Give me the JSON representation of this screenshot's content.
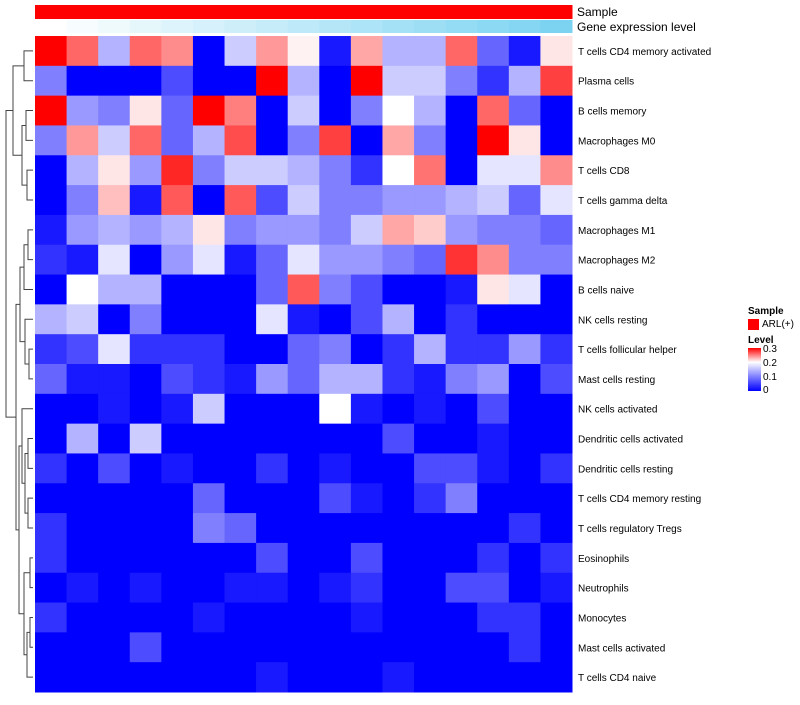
{
  "chart_data": {
    "type": "heatmap",
    "annotation_tracks": {
      "sample": {
        "label": "Sample",
        "values": [
          "ARL(+)",
          "ARL(+)",
          "ARL(+)",
          "ARL(+)",
          "ARL(+)",
          "ARL(+)",
          "ARL(+)",
          "ARL(+)",
          "ARL(+)",
          "ARL(+)",
          "ARL(+)",
          "ARL(+)",
          "ARL(+)",
          "ARL(+)",
          "ARL(+)",
          "ARL(+)",
          "ARL(+)"
        ],
        "color": "#ff0000"
      },
      "expression": {
        "label": "Gene expression level",
        "values": [
          0.0,
          0.05,
          0.1,
          0.15,
          0.2,
          0.25,
          0.3,
          0.35,
          0.4,
          0.45,
          0.5,
          0.55,
          0.6,
          0.65,
          0.7,
          0.75,
          0.8
        ],
        "color_low": "#ffffff",
        "color_high": "#5bc8ee"
      }
    },
    "rows": [
      "T cells CD4 memory activated",
      "Plasma cells",
      "B cells memory",
      "Macrophages M0",
      "T cells CD8",
      "T cells gamma delta",
      "Macrophages M1",
      "Macrophages M2",
      "B cells naive",
      "NK cells resting",
      "T cells follicular helper",
      "Mast cells resting",
      "NK cells activated",
      "Dendritic cells activated",
      "Dendritic cells resting",
      "T cells CD4 memory resting",
      "T cells regulatory  Tregs",
      "Eosinophils",
      "Neutrophils",
      "Monocytes",
      "Mast cells activated",
      "T cells CD4 naive"
    ],
    "values": [
      [
        0.3,
        0.22,
        0.07,
        0.22,
        0.19,
        0.0,
        0.08,
        0.18,
        0.11,
        0.01,
        0.17,
        0.07,
        0.07,
        0.22,
        0.04,
        0.01,
        0.12
      ],
      [
        0.05,
        0.0,
        0.0,
        0.0,
        0.03,
        0.0,
        0.0,
        0.3,
        0.07,
        0.0,
        0.3,
        0.08,
        0.08,
        0.05,
        0.02,
        0.07,
        0.25
      ],
      [
        0.3,
        0.06,
        0.05,
        0.12,
        0.04,
        0.3,
        0.2,
        0.0,
        0.08,
        0.0,
        0.05,
        0.1,
        0.07,
        0.0,
        0.22,
        0.04,
        0.0
      ],
      [
        0.05,
        0.18,
        0.08,
        0.22,
        0.04,
        0.07,
        0.24,
        0.0,
        0.05,
        0.25,
        0.0,
        0.17,
        0.05,
        0.0,
        0.3,
        0.12,
        0.0
      ],
      [
        0.0,
        0.07,
        0.12,
        0.06,
        0.27,
        0.05,
        0.08,
        0.08,
        0.07,
        0.05,
        0.02,
        0.1,
        0.21,
        0.0,
        0.09,
        0.09,
        0.19
      ],
      [
        0.0,
        0.05,
        0.15,
        0.01,
        0.23,
        0.0,
        0.23,
        0.03,
        0.08,
        0.05,
        0.05,
        0.06,
        0.06,
        0.07,
        0.08,
        0.04,
        0.09
      ],
      [
        0.01,
        0.06,
        0.07,
        0.06,
        0.07,
        0.12,
        0.05,
        0.06,
        0.06,
        0.05,
        0.08,
        0.17,
        0.14,
        0.06,
        0.05,
        0.05,
        0.04
      ],
      [
        0.02,
        0.01,
        0.09,
        0.0,
        0.06,
        0.09,
        0.01,
        0.04,
        0.09,
        0.06,
        0.06,
        0.05,
        0.04,
        0.26,
        0.19,
        0.05,
        0.05
      ],
      [
        0.0,
        0.1,
        0.07,
        0.07,
        0.0,
        0.0,
        0.0,
        0.04,
        0.23,
        0.05,
        0.03,
        0.0,
        0.0,
        0.01,
        0.12,
        0.09,
        0.0
      ],
      [
        0.07,
        0.08,
        0.0,
        0.05,
        0.0,
        0.0,
        0.0,
        0.09,
        0.01,
        0.0,
        0.03,
        0.07,
        0.0,
        0.02,
        0.0,
        0.0,
        0.0
      ],
      [
        0.02,
        0.03,
        0.09,
        0.02,
        0.02,
        0.02,
        0.0,
        0.0,
        0.04,
        0.05,
        0.0,
        0.02,
        0.07,
        0.02,
        0.02,
        0.06,
        0.02
      ],
      [
        0.04,
        0.01,
        0.01,
        0.0,
        0.03,
        0.02,
        0.01,
        0.06,
        0.04,
        0.07,
        0.07,
        0.02,
        0.01,
        0.05,
        0.06,
        0.0,
        0.03
      ],
      [
        0.0,
        0.0,
        0.01,
        0.0,
        0.01,
        0.08,
        0.0,
        0.0,
        0.0,
        0.1,
        0.01,
        0.0,
        0.01,
        0.0,
        0.03,
        0.0,
        0.0
      ],
      [
        0.0,
        0.07,
        0.0,
        0.08,
        0.0,
        0.0,
        0.0,
        0.0,
        0.0,
        0.0,
        0.0,
        0.03,
        0.0,
        0.0,
        0.01,
        0.0,
        0.0
      ],
      [
        0.02,
        0.0,
        0.03,
        0.0,
        0.01,
        0.0,
        0.0,
        0.02,
        0.0,
        0.01,
        0.0,
        0.0,
        0.03,
        0.03,
        0.01,
        0.0,
        0.02
      ],
      [
        0.0,
        0.0,
        0.0,
        0.0,
        0.0,
        0.04,
        0.0,
        0.0,
        0.0,
        0.03,
        0.01,
        0.0,
        0.02,
        0.05,
        0.0,
        0.0,
        0.0
      ],
      [
        0.02,
        0.0,
        0.0,
        0.0,
        0.0,
        0.05,
        0.04,
        0.0,
        0.0,
        0.0,
        0.0,
        0.0,
        0.0,
        0.0,
        0.0,
        0.02,
        0.0
      ],
      [
        0.02,
        0.0,
        0.0,
        0.0,
        0.0,
        0.0,
        0.0,
        0.03,
        0.0,
        0.0,
        0.03,
        0.0,
        0.0,
        0.0,
        0.02,
        0.0,
        0.02
      ],
      [
        0.0,
        0.01,
        0.0,
        0.01,
        0.0,
        0.0,
        0.01,
        0.01,
        0.0,
        0.01,
        0.02,
        0.0,
        0.0,
        0.03,
        0.03,
        0.0,
        0.01
      ],
      [
        0.02,
        0.0,
        0.0,
        0.0,
        0.0,
        0.01,
        0.0,
        0.0,
        0.0,
        0.0,
        0.01,
        0.0,
        0.0,
        0.0,
        0.02,
        0.02,
        0.0
      ],
      [
        0.0,
        0.0,
        0.0,
        0.03,
        0.0,
        0.0,
        0.0,
        0.0,
        0.0,
        0.0,
        0.0,
        0.0,
        0.0,
        0.0,
        0.0,
        0.02,
        0.0
      ],
      [
        0.0,
        0.0,
        0.0,
        0.0,
        0.0,
        0.0,
        0.0,
        0.01,
        0.0,
        0.0,
        0.0,
        0.01,
        0.0,
        0.0,
        0.0,
        0.0,
        0.0
      ]
    ],
    "color_scale": {
      "low": "#0000ff",
      "mid": "#ffffff",
      "high": "#ff0000",
      "min": 0,
      "mid_value": 0.1,
      "max": 0.3
    },
    "legend": {
      "sample_title": "Sample",
      "sample_entry": "ARL(+)",
      "level_title": "Level",
      "ticks": [
        "0.3",
        "0.2",
        "0.1",
        "0"
      ],
      "tick_values": [
        0.3,
        0.2,
        0.1,
        0
      ],
      "placement": "right"
    },
    "dendrogram_side": "left"
  }
}
